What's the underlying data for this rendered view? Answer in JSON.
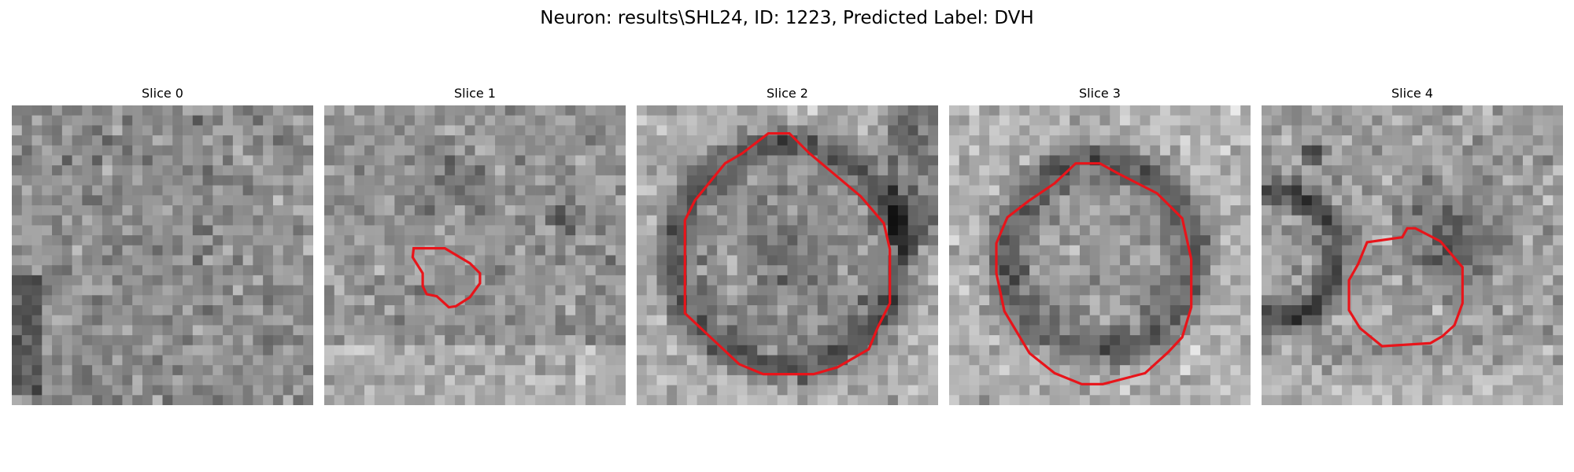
{
  "figure": {
    "suptitle": "Neuron: results\\SHL24, ID: 1223, Predicted Label: DVH",
    "contour_color": "#e8141a",
    "colormap": "gray",
    "panels": [
      {
        "title": "Slice 0"
      },
      {
        "title": "Slice 1"
      },
      {
        "title": "Slice 2"
      },
      {
        "title": "Slice 3"
      },
      {
        "title": "Slice 4"
      }
    ]
  }
}
